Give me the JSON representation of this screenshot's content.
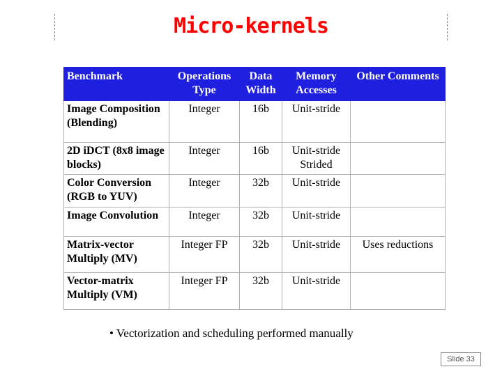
{
  "slide": {
    "title": "Micro-kernels",
    "bullet": "• Vectorization and scheduling performed manually",
    "slide_number": "Slide 33"
  },
  "table": {
    "headers": [
      "Benchmark",
      "Operations Type",
      "Data Width",
      "Memory Accesses",
      "Other Comments"
    ],
    "rows": [
      [
        "Image Composition (Blending)",
        "Integer",
        "16b",
        "Unit-stride",
        ""
      ],
      [
        "2D iDCT (8x8 image blocks)",
        "Integer",
        "16b",
        "Unit-stride Strided",
        ""
      ],
      [
        "Color Conversion (RGB to YUV)",
        "Integer",
        "32b",
        "Unit-stride",
        ""
      ],
      [
        "Image Convolution",
        "Integer",
        "32b",
        "Unit-stride",
        ""
      ],
      [
        "Matrix-vector Multiply (MV)",
        "Integer FP",
        "32b",
        "Unit-stride",
        "Uses reductions"
      ],
      [
        "Vector-matrix Multiply (VM)",
        "Integer FP",
        "32b",
        "Unit-stride",
        ""
      ]
    ]
  },
  "colors": {
    "title": "#ff0000",
    "header_background": "#1f1fe0",
    "header_text": "#ffffff"
  }
}
